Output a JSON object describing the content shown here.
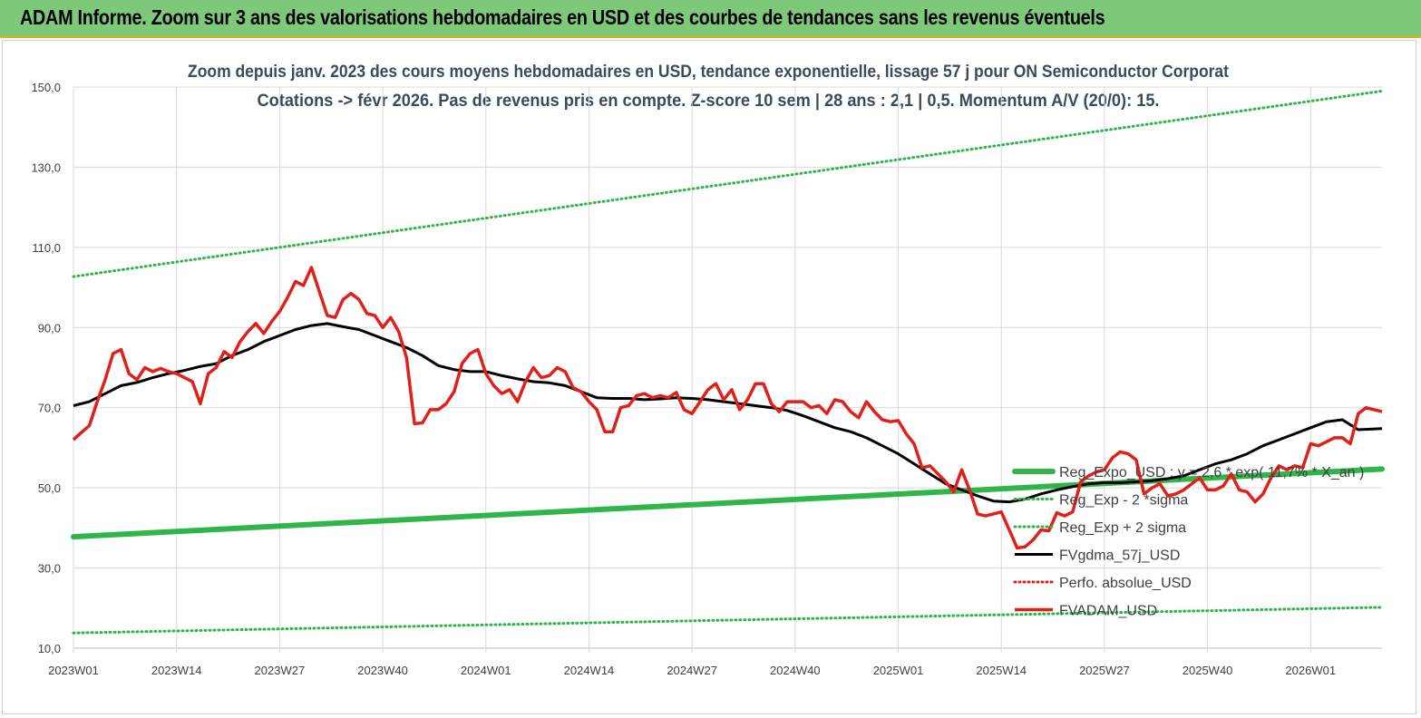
{
  "banner": {
    "title": "ADAM Informe. Zoom sur 3 ans des valorisations hebdomadaires en USD et des courbes de tendances sans les revenus éventuels"
  },
  "chart_data": {
    "type": "line",
    "title": "Zoom depuis janv. 2023 des cours moyens hebdomadaires en USD, tendance exponentielle, lissage 57 j pour ON Semiconductor Corporat",
    "subtitle": "Cotations -> févr 2026.  Pas de revenus pris en compte. Z-score 10 sem  | 28 ans : 2,1  | 0,5. Momentum A/V (20/0): 15.",
    "xlabel": "",
    "ylabel": "",
    "ylim": [
      10,
      150
    ],
    "yticks": [
      "150,0",
      "130,0",
      "110,0",
      "90,0",
      "70,0",
      "50,0",
      "30,0",
      "10,0"
    ],
    "ytick_values": [
      150,
      130,
      110,
      90,
      70,
      50,
      30,
      10
    ],
    "xticks": [
      "2023W01",
      "2023W14",
      "2023W27",
      "2023W40",
      "2024W01",
      "2024W14",
      "2024W27",
      "2024W40",
      "2025W01",
      "2025W14",
      "2025W27",
      "2025W40",
      "2026W01"
    ],
    "xtick_weeks": [
      0,
      13,
      26,
      39,
      52,
      65,
      78,
      91,
      104,
      117,
      130,
      143,
      156
    ],
    "x_weeks_total": 165,
    "grid": true,
    "legend_position": "right",
    "series": [
      {
        "name": "Reg_Expo_USD : y = 2,6 * exp( 11,7% * X_an )",
        "color": "#2fb54a",
        "style": "thick",
        "points": [
          [
            0,
            37.8
          ],
          [
            165,
            54.7
          ]
        ]
      },
      {
        "name": "Reg_Exp - 2 *sigma",
        "color": "#2fb54a",
        "style": "dotted",
        "points": [
          [
            0,
            13.8
          ],
          [
            165,
            20.2
          ]
        ]
      },
      {
        "name": "Reg_Exp + 2 sigma",
        "color": "#2fb54a",
        "style": "dotted",
        "points": [
          [
            0,
            102.7
          ],
          [
            165,
            149.0
          ]
        ]
      },
      {
        "name": "FVgdma_57j_USD",
        "color": "#000000",
        "style": "solid",
        "points": [
          [
            0,
            70.5
          ],
          [
            2,
            71.5
          ],
          [
            4,
            73.5
          ],
          [
            6,
            75.5
          ],
          [
            8,
            76.3
          ],
          [
            10,
            77.5
          ],
          [
            12,
            78.5
          ],
          [
            14,
            79.3
          ],
          [
            16,
            80.3
          ],
          [
            18,
            81.0
          ],
          [
            20,
            83.0
          ],
          [
            22,
            84.5
          ],
          [
            24,
            86.5
          ],
          [
            26,
            88.0
          ],
          [
            28,
            89.5
          ],
          [
            30,
            90.5
          ],
          [
            32,
            91.0
          ],
          [
            34,
            90.2
          ],
          [
            36,
            89.5
          ],
          [
            38,
            88.0
          ],
          [
            40,
            86.5
          ],
          [
            42,
            85.0
          ],
          [
            44,
            83.0
          ],
          [
            46,
            80.5
          ],
          [
            48,
            79.5
          ],
          [
            50,
            79.0
          ],
          [
            52,
            79.0
          ],
          [
            54,
            78.0
          ],
          [
            56,
            77.2
          ],
          [
            58,
            76.5
          ],
          [
            60,
            76.2
          ],
          [
            62,
            75.5
          ],
          [
            64,
            74.0
          ],
          [
            66,
            72.5
          ],
          [
            68,
            72.3
          ],
          [
            70,
            72.3
          ],
          [
            72,
            72.0
          ],
          [
            74,
            72.2
          ],
          [
            76,
            72.5
          ],
          [
            78,
            72.3
          ],
          [
            80,
            72.0
          ],
          [
            82,
            71.5
          ],
          [
            84,
            71.0
          ],
          [
            86,
            70.5
          ],
          [
            88,
            70.0
          ],
          [
            90,
            69.3
          ],
          [
            92,
            68.0
          ],
          [
            94,
            66.5
          ],
          [
            96,
            65.0
          ],
          [
            98,
            64.0
          ],
          [
            100,
            62.5
          ],
          [
            102,
            60.5
          ],
          [
            104,
            58.5
          ],
          [
            106,
            56.0
          ],
          [
            108,
            53.5
          ],
          [
            110,
            51.0
          ],
          [
            112,
            49.5
          ],
          [
            114,
            48.0
          ],
          [
            116,
            46.7
          ],
          [
            118,
            46.5
          ],
          [
            120,
            47.2
          ],
          [
            122,
            48.5
          ],
          [
            124,
            49.5
          ],
          [
            126,
            50.3
          ],
          [
            128,
            51.0
          ],
          [
            130,
            51.3
          ],
          [
            132,
            51.3
          ],
          [
            134,
            51.5
          ],
          [
            136,
            51.8
          ],
          [
            138,
            52.3
          ],
          [
            140,
            53.0
          ],
          [
            142,
            54.5
          ],
          [
            144,
            56.0
          ],
          [
            146,
            57.0
          ],
          [
            148,
            58.5
          ],
          [
            150,
            60.5
          ],
          [
            152,
            62.0
          ],
          [
            154,
            63.5
          ],
          [
            156,
            65.0
          ],
          [
            158,
            66.5
          ],
          [
            160,
            67.0
          ],
          [
            162,
            64.5
          ],
          [
            165,
            64.8
          ]
        ]
      },
      {
        "name": "Perfo. absolue_USD",
        "color": "#e0201a",
        "style": "dotted",
        "points": []
      },
      {
        "name": "FVADAM_USD",
        "color": "#e0201a",
        "style": "solid",
        "points": [
          [
            0,
            62.0
          ],
          [
            1,
            63.8
          ],
          [
            2,
            65.5
          ],
          [
            3,
            71.5
          ],
          [
            4,
            77.0
          ],
          [
            5,
            83.5
          ],
          [
            6,
            84.5
          ],
          [
            7,
            78.5
          ],
          [
            8,
            77.0
          ],
          [
            9,
            80.0
          ],
          [
            10,
            79.0
          ],
          [
            11,
            79.8
          ],
          [
            12,
            79.0
          ],
          [
            13,
            78.5
          ],
          [
            14,
            77.5
          ],
          [
            15,
            76.5
          ],
          [
            16,
            71.0
          ],
          [
            17,
            78.5
          ],
          [
            18,
            80.0
          ],
          [
            19,
            84.0
          ],
          [
            20,
            82.5
          ],
          [
            21,
            86.5
          ],
          [
            22,
            89.0
          ],
          [
            23,
            91.0
          ],
          [
            24,
            88.5
          ],
          [
            25,
            91.5
          ],
          [
            26,
            94.0
          ],
          [
            27,
            97.5
          ],
          [
            28,
            101.5
          ],
          [
            29,
            100.5
          ],
          [
            30,
            105.0
          ],
          [
            31,
            99.0
          ],
          [
            32,
            93.0
          ],
          [
            33,
            92.5
          ],
          [
            34,
            97.0
          ],
          [
            35,
            98.5
          ],
          [
            36,
            97.0
          ],
          [
            37,
            93.5
          ],
          [
            38,
            93.0
          ],
          [
            39,
            90.0
          ],
          [
            40,
            92.5
          ],
          [
            41,
            89.0
          ],
          [
            42,
            82.5
          ],
          [
            43,
            66.0
          ],
          [
            44,
            66.2
          ],
          [
            45,
            69.5
          ],
          [
            46,
            69.5
          ],
          [
            47,
            71.0
          ],
          [
            48,
            74.0
          ],
          [
            49,
            81.0
          ],
          [
            50,
            83.5
          ],
          [
            51,
            84.5
          ],
          [
            52,
            78.5
          ],
          [
            53,
            75.5
          ],
          [
            54,
            73.5
          ],
          [
            55,
            74.5
          ],
          [
            56,
            71.5
          ],
          [
            57,
            76.5
          ],
          [
            58,
            80.0
          ],
          [
            59,
            77.5
          ],
          [
            60,
            78.0
          ],
          [
            61,
            80.0
          ],
          [
            62,
            79.0
          ],
          [
            63,
            75.0
          ],
          [
            64,
            74.0
          ],
          [
            65,
            71.5
          ],
          [
            66,
            69.5
          ],
          [
            67,
            64.0
          ],
          [
            68,
            64.0
          ],
          [
            69,
            70.0
          ],
          [
            70,
            70.5
          ],
          [
            71,
            73.0
          ],
          [
            72,
            73.5
          ],
          [
            73,
            72.5
          ],
          [
            74,
            73.0
          ],
          [
            75,
            72.5
          ],
          [
            76,
            73.8
          ],
          [
            77,
            69.5
          ],
          [
            78,
            68.5
          ],
          [
            79,
            71.5
          ],
          [
            80,
            74.5
          ],
          [
            81,
            76.0
          ],
          [
            82,
            72.0
          ],
          [
            83,
            74.5
          ],
          [
            84,
            69.5
          ],
          [
            85,
            72.0
          ],
          [
            86,
            76.0
          ],
          [
            87,
            76.0
          ],
          [
            88,
            71.0
          ],
          [
            89,
            69.0
          ],
          [
            90,
            71.5
          ],
          [
            91,
            71.5
          ],
          [
            92,
            71.5
          ],
          [
            93,
            70.0
          ],
          [
            94,
            70.5
          ],
          [
            95,
            68.5
          ],
          [
            96,
            72.0
          ],
          [
            97,
            71.5
          ],
          [
            98,
            69.0
          ],
          [
            99,
            67.5
          ],
          [
            100,
            71.5
          ],
          [
            101,
            69.0
          ],
          [
            102,
            67.0
          ],
          [
            103,
            66.5
          ],
          [
            104,
            66.8
          ],
          [
            105,
            63.5
          ],
          [
            106,
            61.0
          ],
          [
            107,
            55.0
          ],
          [
            108,
            55.5
          ],
          [
            109,
            53.5
          ],
          [
            110,
            51.5
          ],
          [
            111,
            49.0
          ],
          [
            112,
            54.5
          ],
          [
            113,
            49.5
          ],
          [
            114,
            43.5
          ],
          [
            115,
            43.0
          ],
          [
            116,
            43.5
          ],
          [
            117,
            44.0
          ],
          [
            118,
            39.5
          ],
          [
            119,
            35.0
          ],
          [
            120,
            35.3
          ],
          [
            121,
            37.0
          ],
          [
            122,
            39.5
          ],
          [
            123,
            39.3
          ],
          [
            124,
            43.8
          ],
          [
            125,
            43.0
          ],
          [
            126,
            44.0
          ],
          [
            127,
            51.5
          ],
          [
            128,
            53.0
          ],
          [
            129,
            54.0
          ],
          [
            130,
            54.5
          ],
          [
            131,
            57.5
          ],
          [
            132,
            59.0
          ],
          [
            133,
            58.5
          ],
          [
            134,
            57.0
          ],
          [
            135,
            48.5
          ],
          [
            136,
            50.0
          ],
          [
            137,
            51.0
          ],
          [
            138,
            48.0
          ],
          [
            139,
            48.5
          ],
          [
            140,
            49.5
          ],
          [
            141,
            51.0
          ],
          [
            142,
            52.5
          ],
          [
            143,
            49.5
          ],
          [
            144,
            49.5
          ],
          [
            145,
            50.5
          ],
          [
            146,
            53.5
          ],
          [
            147,
            49.5
          ],
          [
            148,
            49.0
          ],
          [
            149,
            46.5
          ],
          [
            150,
            48.5
          ],
          [
            151,
            52.5
          ],
          [
            152,
            55.5
          ],
          [
            153,
            54.5
          ],
          [
            154,
            55.5
          ],
          [
            155,
            55.0
          ],
          [
            156,
            61.0
          ],
          [
            157,
            60.5
          ],
          [
            158,
            61.5
          ],
          [
            159,
            62.5
          ],
          [
            160,
            62.5
          ],
          [
            161,
            61.0
          ],
          [
            162,
            68.5
          ],
          [
            163,
            70.0
          ],
          [
            164,
            69.5
          ],
          [
            165,
            69.0
          ]
        ]
      }
    ]
  }
}
